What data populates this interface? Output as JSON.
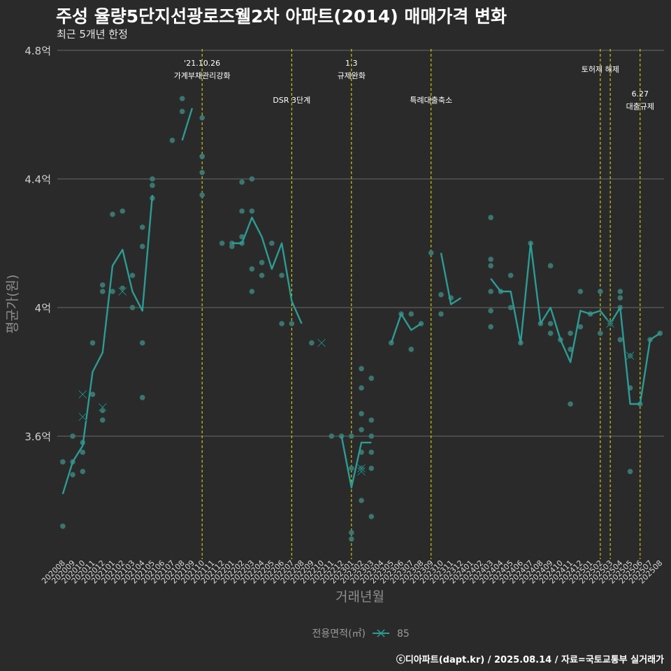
{
  "title": "주성 율량5단지선광로즈웰2차 아파트(2014) 매매가격 변화",
  "subtitle": "최근 5개년 한정",
  "caption": "ⓒ디아파트(dapt.kr) / 2025.08.14 / 자료=국토교통부 실거래가",
  "colors": {
    "background": "#2b2a2b",
    "line": "#2a9d94",
    "point": "#3b7a74",
    "event_line": "#e5e500",
    "grid": "#6a6a6a"
  },
  "chart_data": {
    "type": "line",
    "title": "주성 율량5단지선광로즈웰2차 아파트(2014) 매매가격 변화",
    "xlabel": "거래년월",
    "ylabel": "평균가(원)",
    "ylim": [
      3.2,
      4.82
    ],
    "ytick_values": [
      3.6,
      4.0,
      4.4,
      4.8
    ],
    "ytick_labels": [
      "3.6억",
      "4억",
      "4.4억",
      "4.8억"
    ],
    "categories": [
      "202008",
      "202009",
      "202010",
      "202011",
      "202012",
      "202101",
      "202102",
      "202103",
      "202104",
      "202105",
      "202106",
      "202107",
      "202108",
      "202109",
      "202110",
      "202111",
      "202112",
      "202201",
      "202202",
      "202203",
      "202204",
      "202205",
      "202206",
      "202207",
      "202208",
      "202209",
      "202210",
      "202211",
      "202212",
      "202301",
      "202302",
      "202303",
      "202304",
      "202305",
      "202306",
      "202307",
      "202308",
      "202309",
      "202310",
      "202311",
      "202312",
      "202401",
      "202402",
      "202403",
      "202404",
      "202405",
      "202406",
      "202407",
      "202408",
      "202409",
      "202410",
      "202411",
      "202412",
      "202501",
      "202502",
      "202503",
      "202504",
      "202505",
      "202506",
      "202507",
      "202508"
    ],
    "legend": {
      "title": "전용면적(㎡)",
      "entries": [
        "85"
      ]
    },
    "series": [
      {
        "name": "85",
        "values": [
          3.42,
          3.52,
          3.57,
          3.8,
          3.86,
          4.13,
          4.18,
          4.05,
          3.99,
          4.35,
          null,
          null,
          4.52,
          4.62,
          null,
          null,
          null,
          4.2,
          4.2,
          4.28,
          4.22,
          4.12,
          4.2,
          4.02,
          3.95,
          null,
          3.89,
          null,
          3.6,
          3.44,
          3.58,
          3.58,
          null,
          3.89,
          3.98,
          3.93,
          3.95,
          null,
          4.17,
          4.01,
          4.03,
          null,
          null,
          4.09,
          4.05,
          4.05,
          3.89,
          4.2,
          3.95,
          4.0,
          3.9,
          3.83,
          3.99,
          3.98,
          3.99,
          3.95,
          4.0,
          3.7,
          3.7,
          3.9,
          3.92
        ]
      }
    ],
    "points": [
      [
        "202008",
        3.52
      ],
      [
        "202008",
        3.32
      ],
      [
        "202009",
        3.6
      ],
      [
        "202009",
        3.52
      ],
      [
        "202009",
        3.48
      ],
      [
        "202010",
        3.58
      ],
      [
        "202010",
        3.55
      ],
      [
        "202010",
        3.49
      ],
      [
        "202011",
        3.89
      ],
      [
        "202011",
        3.73
      ],
      [
        "202012",
        3.68
      ],
      [
        "202012",
        3.65
      ],
      [
        "202012",
        4.07
      ],
      [
        "202012",
        4.05
      ],
      [
        "202101",
        4.29
      ],
      [
        "202101",
        4.05
      ],
      [
        "202102",
        4.3
      ],
      [
        "202102",
        4.06
      ],
      [
        "202103",
        4.1
      ],
      [
        "202103",
        4.0
      ],
      [
        "202104",
        4.25
      ],
      [
        "202104",
        4.19
      ],
      [
        "202104",
        3.89
      ],
      [
        "202104",
        3.72
      ],
      [
        "202105",
        4.4
      ],
      [
        "202105",
        4.38
      ],
      [
        "202105",
        4.34
      ],
      [
        "202107",
        4.52
      ],
      [
        "202108",
        4.61
      ],
      [
        "202108",
        4.65
      ],
      [
        "202110",
        4.59
      ],
      [
        "202110",
        4.47
      ],
      [
        "202110",
        4.47
      ],
      [
        "202110",
        4.42
      ],
      [
        "202110",
        4.35
      ],
      [
        "202112",
        4.2
      ],
      [
        "202201",
        4.2
      ],
      [
        "202201",
        4.19
      ],
      [
        "202202",
        4.39
      ],
      [
        "202202",
        4.3
      ],
      [
        "202202",
        4.22
      ],
      [
        "202202",
        4.2
      ],
      [
        "202203",
        4.4
      ],
      [
        "202203",
        4.3
      ],
      [
        "202203",
        4.05
      ],
      [
        "202203",
        4.12
      ],
      [
        "202204",
        4.14
      ],
      [
        "202204",
        4.1
      ],
      [
        "202205",
        4.2
      ],
      [
        "202206",
        4.1
      ],
      [
        "202206",
        3.95
      ],
      [
        "202207",
        3.95
      ],
      [
        "202209",
        3.89
      ],
      [
        "202211",
        3.6
      ],
      [
        "202212",
        3.6
      ],
      [
        "202301",
        3.6
      ],
      [
        "202301",
        3.5
      ],
      [
        "202301",
        3.3
      ],
      [
        "202301",
        3.28
      ],
      [
        "202302",
        3.81
      ],
      [
        "202302",
        3.75
      ],
      [
        "202302",
        3.67
      ],
      [
        "202302",
        3.62
      ],
      [
        "202302",
        3.55
      ],
      [
        "202302",
        3.5
      ],
      [
        "202302",
        3.4
      ],
      [
        "202303",
        3.78
      ],
      [
        "202303",
        3.65
      ],
      [
        "202303",
        3.6
      ],
      [
        "202303",
        3.55
      ],
      [
        "202303",
        3.5
      ],
      [
        "202303",
        3.35
      ],
      [
        "202305",
        3.89
      ],
      [
        "202306",
        3.98
      ],
      [
        "202307",
        3.98
      ],
      [
        "202307",
        3.87
      ],
      [
        "202308",
        3.95
      ],
      [
        "202309",
        4.17
      ],
      [
        "202310",
        4.04
      ],
      [
        "202310",
        3.98
      ],
      [
        "202311",
        4.03
      ],
      [
        "202403",
        4.28
      ],
      [
        "202403",
        4.15
      ],
      [
        "202403",
        4.13
      ],
      [
        "202403",
        4.05
      ],
      [
        "202403",
        3.99
      ],
      [
        "202403",
        3.94
      ],
      [
        "202404",
        4.05
      ],
      [
        "202405",
        4.1
      ],
      [
        "202405",
        4.0
      ],
      [
        "202406",
        3.89
      ],
      [
        "202407",
        4.2
      ],
      [
        "202408",
        3.95
      ],
      [
        "202409",
        4.13
      ],
      [
        "202409",
        3.95
      ],
      [
        "202409",
        3.92
      ],
      [
        "202410",
        3.9
      ],
      [
        "202411",
        3.92
      ],
      [
        "202411",
        3.87
      ],
      [
        "202411",
        3.7
      ],
      [
        "202412",
        4.05
      ],
      [
        "202412",
        3.94
      ],
      [
        "202501",
        3.98
      ],
      [
        "202502",
        4.05
      ],
      [
        "202502",
        3.92
      ],
      [
        "202503",
        3.95
      ],
      [
        "202504",
        4.05
      ],
      [
        "202504",
        4.03
      ],
      [
        "202504",
        4.0
      ],
      [
        "202504",
        3.9
      ],
      [
        "202505",
        3.85
      ],
      [
        "202505",
        3.75
      ],
      [
        "202505",
        3.49
      ],
      [
        "202506",
        3.7
      ],
      [
        "202507",
        3.9
      ],
      [
        "202508",
        3.92
      ]
    ],
    "cross_points": [
      [
        "202010",
        3.73
      ],
      [
        "202010",
        3.66
      ],
      [
        "202012",
        3.69
      ],
      [
        "202102",
        4.05
      ],
      [
        "202210",
        3.89
      ],
      [
        "202302",
        3.49
      ],
      [
        "202302",
        3.5
      ],
      [
        "202503",
        3.95
      ],
      [
        "202505",
        3.85
      ]
    ],
    "events": [
      {
        "x": "202110",
        "label": "'21.10.26",
        "label2": "가계부채관리강화",
        "row": "top"
      },
      {
        "x": "202207",
        "label": "DSR 3단계",
        "label2": "",
        "row": "low"
      },
      {
        "x": "202301",
        "label": "1.3",
        "label2": "규제완화",
        "row": "top"
      },
      {
        "x": "202309",
        "label": "특례대출축소",
        "label2": "",
        "row": "low"
      },
      {
        "x": "202502",
        "label": "토허제 해제",
        "label2": "",
        "row": "top"
      },
      {
        "x": "202503",
        "label": "",
        "label2": "",
        "row": "none"
      },
      {
        "x": "202506",
        "label": "6.27",
        "label2": "대출규제",
        "row": "mid"
      }
    ]
  }
}
